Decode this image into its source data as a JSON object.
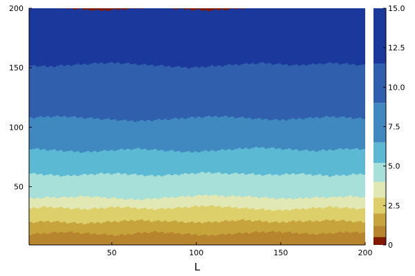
{
  "chart_data": {
    "type": "heatmap",
    "title": "",
    "xlabel": "L",
    "ylabel": "",
    "xlim": [
      1,
      200
    ],
    "ylim": [
      1,
      200
    ],
    "xticks": [
      {
        "value": 50,
        "label": "50"
      },
      {
        "value": 100,
        "label": "100"
      },
      {
        "value": 150,
        "label": "150"
      },
      {
        "value": 200,
        "label": "200"
      }
    ],
    "yticks": [
      {
        "value": 50,
        "label": "50"
      },
      {
        "value": 100,
        "label": "100"
      },
      {
        "value": 150,
        "label": "150"
      },
      {
        "value": 200,
        "label": "200"
      }
    ],
    "grid": false,
    "colorbar": {
      "range": [
        0,
        15
      ],
      "ticks": [
        {
          "value": 0,
          "label": "0"
        },
        {
          "value": 2.5,
          "label": "2.5"
        },
        {
          "value": 5,
          "label": "5.0"
        },
        {
          "value": 7.5,
          "label": "7.5"
        },
        {
          "value": 10,
          "label": "10.0"
        },
        {
          "value": 12.5,
          "label": "12.5"
        },
        {
          "value": 15,
          "label": "15.0"
        }
      ],
      "levels": [
        {
          "from": 0,
          "to": 0.5,
          "color": "#7f1a00"
        },
        {
          "from": 0.5,
          "to": 1.2,
          "color": "#b7852e"
        },
        {
          "from": 1.2,
          "to": 2.0,
          "color": "#c8a43c"
        },
        {
          "from": 2.0,
          "to": 3.0,
          "color": "#ddd06b"
        },
        {
          "from": 3.0,
          "to": 4.0,
          "color": "#e2e8b3"
        },
        {
          "from": 4.0,
          "to": 5.2,
          "color": "#a6e0d8"
        },
        {
          "from": 5.2,
          "to": 6.5,
          "color": "#5cb9d4"
        },
        {
          "from": 6.5,
          "to": 9.0,
          "color": "#3f89c0"
        },
        {
          "from": 9.0,
          "to": 11.5,
          "color": "#2f5fad"
        },
        {
          "from": 11.5,
          "to": 15.0,
          "color": "#1b399c"
        }
      ]
    },
    "bands": [
      {
        "from": 1,
        "to": 10,
        "color": "#b7852e"
      },
      {
        "from": 10,
        "to": 20,
        "color": "#c8a43c"
      },
      {
        "from": 20,
        "to": 31,
        "color": "#ddd06b"
      },
      {
        "from": 31,
        "to": 40,
        "color": "#e2e8b3"
      },
      {
        "from": 40,
        "to": 60,
        "color": "#a6e0d8"
      },
      {
        "from": 60,
        "to": 80,
        "color": "#5cb9d4"
      },
      {
        "from": 80,
        "to": 107,
        "color": "#3f89c0"
      },
      {
        "from": 107,
        "to": 152,
        "color": "#2f5fad"
      },
      {
        "from": 152,
        "to": 200,
        "color": "#1b399c"
      },
      {
        "from": 200,
        "to": 200,
        "color": "#7f1a00"
      }
    ],
    "boundary_ripple": [
      [
        0,
        1,
        2,
        1,
        0,
        -1,
        1,
        2,
        1,
        0,
        -1,
        0,
        1,
        2,
        2,
        1,
        0,
        1,
        2,
        1
      ],
      [
        0,
        1,
        0,
        -1,
        0,
        1,
        2,
        1,
        1,
        0,
        0,
        1,
        2,
        1,
        0,
        1,
        1,
        2,
        1,
        0
      ],
      [
        1,
        2,
        1,
        0,
        1,
        2,
        1,
        0,
        1,
        2,
        3,
        2,
        1,
        0,
        -1,
        0,
        1,
        2,
        1,
        0
      ],
      [
        0,
        1,
        1,
        2,
        1,
        0,
        -1,
        0,
        1,
        2,
        3,
        2,
        2,
        1,
        0,
        0,
        1,
        1,
        2,
        1
      ],
      [
        1,
        0,
        -1,
        0,
        1,
        1,
        0,
        -1,
        0,
        1,
        2,
        1,
        1,
        0,
        0,
        1,
        0,
        -1,
        0,
        1
      ],
      [
        2,
        1,
        0,
        -1,
        0,
        1,
        2,
        1,
        0,
        -1,
        0,
        1,
        2,
        3,
        2,
        1,
        0,
        1,
        2,
        1
      ],
      [
        1,
        2,
        2,
        1,
        0,
        -1,
        -2,
        -1,
        0,
        1,
        2,
        2,
        1,
        0,
        -1,
        0,
        1,
        2,
        1,
        0
      ],
      [
        0,
        -1,
        0,
        1,
        2,
        2,
        1,
        0,
        -1,
        -2,
        -1,
        0,
        1,
        2,
        1,
        0,
        1,
        2,
        1,
        0
      ],
      [
        2,
        1,
        0,
        -1,
        -2,
        -1,
        0,
        1,
        0,
        -1,
        -2,
        -1,
        0,
        1,
        2,
        2,
        1,
        2,
        3,
        2
      ]
    ]
  }
}
